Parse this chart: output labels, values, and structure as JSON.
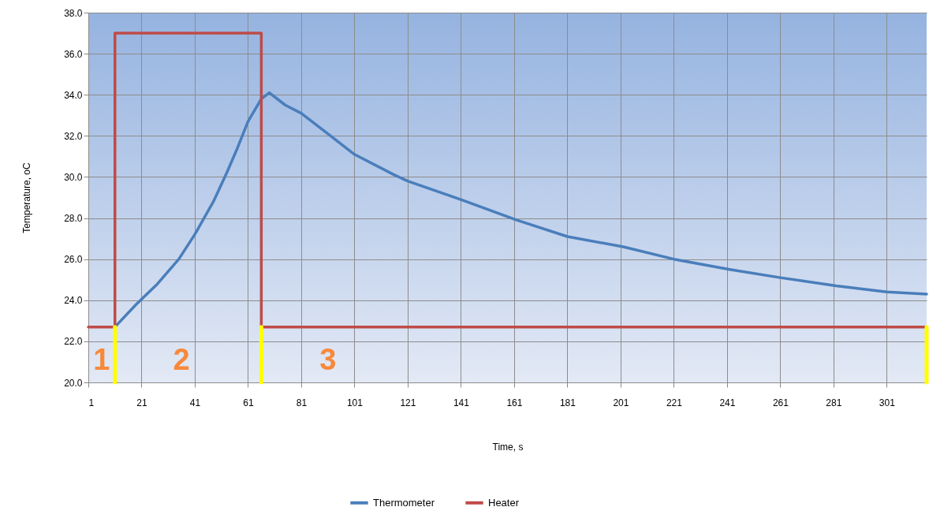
{
  "chart_data": {
    "type": "line",
    "xlabel": "Time, s",
    "ylabel": "Temperature, oC",
    "xlim": [
      1,
      316
    ],
    "xticks": [
      1,
      21,
      41,
      61,
      81,
      101,
      121,
      141,
      161,
      181,
      201,
      221,
      241,
      261,
      281,
      301
    ],
    "ylim": [
      20,
      38
    ],
    "yticks": [
      {
        "value": 20,
        "label": "20.0"
      },
      {
        "value": 22,
        "label": "22.0"
      },
      {
        "value": 24,
        "label": "24.0"
      },
      {
        "value": 26,
        "label": "26.0"
      },
      {
        "value": 28,
        "label": "28.0"
      },
      {
        "value": 30,
        "label": "30.0"
      },
      {
        "value": 32,
        "label": "32.0"
      },
      {
        "value": 34,
        "label": "34.0"
      },
      {
        "value": 36,
        "label": "36.0"
      },
      {
        "value": 38,
        "label": "38.0"
      }
    ],
    "series": [
      {
        "name": "Thermometer",
        "color": "#4a7ebb",
        "x": [
          11,
          19,
          27,
          35,
          41,
          48,
          53,
          57,
          61,
          66,
          69,
          75,
          81,
          91,
          101,
          116,
          121,
          141,
          162,
          181,
          202,
          221,
          242,
          261,
          282,
          301,
          316
        ],
        "values": [
          22.7,
          23.8,
          24.8,
          26.0,
          27.2,
          28.8,
          30.2,
          31.4,
          32.7,
          33.8,
          34.1,
          33.5,
          33.1,
          32.1,
          31.1,
          30.1,
          29.8,
          28.9,
          27.9,
          27.1,
          26.6,
          26.0,
          25.5,
          25.1,
          24.7,
          24.4,
          24.3
        ]
      },
      {
        "name": "Heater",
        "color": "#be4b48",
        "x": [
          1,
          11,
          11,
          66,
          66,
          316
        ],
        "values": [
          22.7,
          22.7,
          37.0,
          37.0,
          22.7,
          22.7
        ]
      }
    ],
    "ref_lines": [
      {
        "axis": "x",
        "value": 11,
        "color": "#ffff00"
      },
      {
        "axis": "x",
        "value": 66,
        "color": "#ffff00"
      },
      {
        "axis": "x",
        "value": 316,
        "color": "#ffff00"
      }
    ],
    "annotations": [
      "1",
      "2",
      "3"
    ],
    "grid": true,
    "legend": "bottom",
    "line_style": "solid",
    "marker": "none"
  }
}
